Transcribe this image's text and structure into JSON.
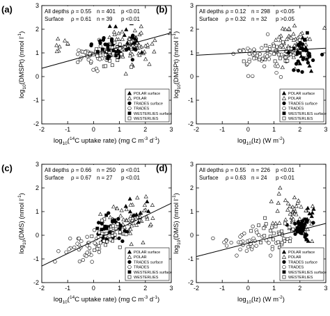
{
  "chart_data": [
    {
      "type": "scatter",
      "panel_label": "(a)",
      "xlabel_tex": {
        "pre": "log",
        "sub": "10",
        "mid": "(",
        "sup1": "14",
        "post": "C uptake rate) (mg C m",
        "sup2": "-3",
        "post2": " d",
        "sup3": "-1",
        "end": ")"
      },
      "ylabel_tex": {
        "pre": "log",
        "sub": "10",
        "mid": "(DMSPt) (nmol l",
        "sup": "-1",
        "end": ")"
      },
      "xlim": [
        -2,
        3
      ],
      "ylim": [
        -2,
        3
      ],
      "xticks": [
        "-2",
        "-1",
        "0",
        "1",
        "2",
        "3"
      ],
      "yticks": [
        "-2",
        "-1",
        "0",
        "1",
        "2",
        "3"
      ],
      "stats": [
        {
          "label": "All depths",
          "rho": "ρ =  0.55",
          "n": "n = 401",
          "p": "p <0.01"
        },
        {
          "label": "Surface",
          "rho": "ρ =  0.61",
          "n": "n = 39",
          "p": "p <0.01"
        }
      ],
      "fit": {
        "x": [
          -2,
          3
        ],
        "y": [
          0.35,
          1.85
        ]
      },
      "clusters": [
        {
          "series": "POLAR",
          "cx": 1.3,
          "cy": 1.3,
          "sx": 0.55,
          "sy": 0.4,
          "n": 70
        },
        {
          "series": "POLAR surface",
          "cx": 1.4,
          "cy": 1.7,
          "sx": 0.45,
          "sy": 0.3,
          "n": 12
        },
        {
          "series": "TRADES",
          "cx": -0.1,
          "cy": 0.9,
          "sx": 0.4,
          "sy": 0.3,
          "n": 40
        },
        {
          "series": "TRADES surface",
          "cx": 0.7,
          "cy": 1.2,
          "sx": 0.4,
          "sy": 0.3,
          "n": 30
        },
        {
          "series": "WESTERLIES",
          "cx": 0.6,
          "cy": 1.0,
          "sx": 0.35,
          "sy": 0.25,
          "n": 35
        },
        {
          "series": "WESTERLIES surface",
          "cx": 0.6,
          "cy": 1.05,
          "sx": 0.3,
          "sy": 0.2,
          "n": 10
        },
        {
          "series": "POLAR",
          "cx": -1.4,
          "cy": 1.35,
          "sx": 0.3,
          "sy": 0.2,
          "n": 8
        }
      ]
    },
    {
      "type": "scatter",
      "panel_label": "(b)",
      "xlabel_tex": {
        "pre": "log",
        "sub": "10",
        "mid": "(Iz) (W m",
        "sup": "-2",
        "end": ")"
      },
      "ylabel_tex": {
        "pre": "log",
        "sub": "10",
        "mid": "(DMSPt) (nmol l",
        "sup": "-1",
        "end": ")"
      },
      "xlim": [
        -2,
        3
      ],
      "ylim": [
        -2,
        3
      ],
      "xticks": [
        "-2",
        "-1",
        "0",
        "1",
        "2",
        "3"
      ],
      "yticks": [
        "-2",
        "-1",
        "0",
        "1",
        "2",
        "3"
      ],
      "stats": [
        {
          "label": "All depths",
          "rho": "ρ =  0.12",
          "n": "n = 298",
          "p": "p <0.05"
        },
        {
          "label": "Surface",
          "rho": "ρ =  0.32",
          "n": "n = 32",
          "p": "p >0.05"
        }
      ],
      "fit": {
        "x": [
          -2,
          3
        ],
        "y": [
          0.9,
          1.2
        ]
      },
      "clusters": [
        {
          "series": "POLAR",
          "cx": 1.7,
          "cy": 1.3,
          "sx": 0.4,
          "sy": 0.45,
          "n": 55
        },
        {
          "series": "POLAR surface",
          "cx": 2.2,
          "cy": 1.2,
          "sx": 0.15,
          "sy": 0.35,
          "n": 12
        },
        {
          "series": "TRADES",
          "cx": 0.5,
          "cy": 0.9,
          "sx": 0.6,
          "sy": 0.35,
          "n": 40
        },
        {
          "series": "TRADES surface",
          "cx": 2.0,
          "cy": 0.9,
          "sx": 0.25,
          "sy": 0.3,
          "n": 22
        },
        {
          "series": "WESTERLIES",
          "cx": 1.2,
          "cy": 1.0,
          "sx": 0.5,
          "sy": 0.3,
          "n": 30
        },
        {
          "series": "WESTERLIES surface",
          "cx": 2.1,
          "cy": 1.0,
          "sx": 0.2,
          "sy": 0.25,
          "n": 8
        }
      ]
    },
    {
      "type": "scatter",
      "panel_label": "(c)",
      "xlabel_tex": {
        "pre": "log",
        "sub": "10",
        "mid": "(",
        "sup1": "14",
        "post": "C uptake rate) (mg C m",
        "sup2": "-3",
        "post2": " d",
        "sup3": "-1",
        "end": ")"
      },
      "ylabel_tex": {
        "pre": "log",
        "sub": "10",
        "mid": "(DMS) (nmol l",
        "sup": "-1",
        "end": ")"
      },
      "xlim": [
        -2,
        3
      ],
      "ylim": [
        -2,
        3
      ],
      "xticks": [
        "-2",
        "-1",
        "0",
        "1",
        "2",
        "3"
      ],
      "yticks": [
        "-2",
        "-1",
        "0",
        "1",
        "2",
        "3"
      ],
      "stats": [
        {
          "label": "All depths",
          "rho": "ρ =  0.66",
          "n": "n = 250",
          "p": "p <0.01"
        },
        {
          "label": "Surface",
          "rho": "ρ =  0.67",
          "n": "n = 27",
          "p": "p <0.01"
        }
      ],
      "fit": {
        "x": [
          -2,
          3
        ],
        "y": [
          -1.3,
          1.35
        ]
      },
      "clusters": [
        {
          "series": "POLAR",
          "cx": 1.4,
          "cy": 0.8,
          "sx": 0.5,
          "sy": 0.45,
          "n": 55
        },
        {
          "series": "POLAR surface",
          "cx": 1.5,
          "cy": 0.9,
          "sx": 0.35,
          "sy": 0.3,
          "n": 10
        },
        {
          "series": "TRADES",
          "cx": -0.3,
          "cy": -0.4,
          "sx": 0.45,
          "sy": 0.35,
          "n": 40
        },
        {
          "series": "TRADES surface",
          "cx": 0.6,
          "cy": 0.2,
          "sx": 0.4,
          "sy": 0.3,
          "n": 25
        },
        {
          "series": "WESTERLIES",
          "cx": 0.5,
          "cy": 0.1,
          "sx": 0.35,
          "sy": 0.3,
          "n": 30
        },
        {
          "series": "WESTERLIES surface",
          "cx": 0.5,
          "cy": 0.15,
          "sx": 0.3,
          "sy": 0.25,
          "n": 8
        }
      ]
    },
    {
      "type": "scatter",
      "panel_label": "(d)",
      "xlabel_tex": {
        "pre": "log",
        "sub": "10",
        "mid": "(Iz) (W m",
        "sup": "-2",
        "end": ")"
      },
      "ylabel_tex": {
        "pre": "log",
        "sub": "10",
        "mid": "(DMS) (nmol l",
        "sup": "-1",
        "end": ")"
      },
      "xlim": [
        -2,
        3
      ],
      "ylim": [
        -2,
        3
      ],
      "xticks": [
        "-2",
        "-1",
        "0",
        "1",
        "2",
        "3"
      ],
      "yticks": [
        "-2",
        "-1",
        "0",
        "1",
        "2",
        "3"
      ],
      "stats": [
        {
          "label": "All depths",
          "rho": "ρ =  0.55",
          "n": "n = 226",
          "p": "p <0.01"
        },
        {
          "label": "Surface",
          "rho": "ρ =  0.63",
          "n": "n = 24",
          "p": "p <0.01"
        }
      ],
      "fit": {
        "x": [
          -2,
          3
        ],
        "y": [
          -0.9,
          0.5
        ]
      },
      "clusters": [
        {
          "series": "POLAR",
          "cx": 1.7,
          "cy": 0.9,
          "sx": 0.4,
          "sy": 0.5,
          "n": 50
        },
        {
          "series": "POLAR surface",
          "cx": 2.2,
          "cy": 0.7,
          "sx": 0.15,
          "sy": 0.35,
          "n": 12
        },
        {
          "series": "TRADES",
          "cx": 0.1,
          "cy": -0.3,
          "sx": 0.55,
          "sy": 0.3,
          "n": 40
        },
        {
          "series": "TRADES surface",
          "cx": 2.0,
          "cy": 0.3,
          "sx": 0.25,
          "sy": 0.3,
          "n": 22
        },
        {
          "series": "WESTERLIES",
          "cx": 1.0,
          "cy": 0.0,
          "sx": 0.5,
          "sy": 0.3,
          "n": 30
        },
        {
          "series": "WESTERLIES surface",
          "cx": 2.1,
          "cy": 0.3,
          "sx": 0.2,
          "sy": 0.25,
          "n": 8
        }
      ]
    }
  ],
  "legend": [
    {
      "label": "POLAR surface",
      "marker": "triangle",
      "filled": true
    },
    {
      "label": "POLAR",
      "marker": "triangle",
      "filled": false
    },
    {
      "label": "TRADES surface",
      "marker": "circle",
      "filled": true
    },
    {
      "label": "TRADES",
      "marker": "circle",
      "filled": false
    },
    {
      "label": "WESTERLIES surface",
      "marker": "square",
      "filled": true
    },
    {
      "label": "WESTERLIES",
      "marker": "square",
      "filled": false
    }
  ]
}
